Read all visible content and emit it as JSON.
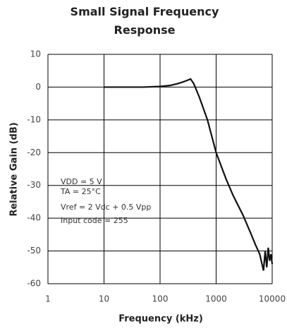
{
  "chart_data": {
    "type": "line",
    "title": "Small Signal Frequency Response",
    "xlabel": "Frequency (kHz)",
    "ylabel": "Relative Gain (dB)",
    "xscale": "log",
    "xlim": [
      1,
      10000
    ],
    "xticks": [
      1,
      10,
      100,
      1000,
      10000
    ],
    "ylim": [
      -60,
      10
    ],
    "yticks": [
      10,
      0,
      -10,
      -20,
      -30,
      -40,
      -50,
      -60
    ],
    "grid": true,
    "annotations": [
      "VDD = 5 V",
      "TA = 25°C",
      "Vref = 2 Vdc + 0.5 Vpp",
      "Input code = 255"
    ],
    "x": [
      10,
      20,
      50,
      100,
      150,
      200,
      250,
      300,
      350,
      400,
      500,
      700,
      1000,
      1500,
      2000,
      3000,
      4000,
      5000,
      6000,
      7000,
      7500,
      8000,
      8500,
      9000,
      9500,
      10000
    ],
    "series": [
      {
        "color": "#111111",
        "values": [
          0,
          0,
          0,
          0.2,
          0.5,
          1,
          1.5,
          2,
          2.5,
          1,
          -3,
          -10,
          -20,
          -28,
          -33,
          -39,
          -44,
          -48,
          -51,
          -56,
          -50,
          -55,
          -49,
          -53,
          -51,
          -54
        ]
      }
    ]
  }
}
